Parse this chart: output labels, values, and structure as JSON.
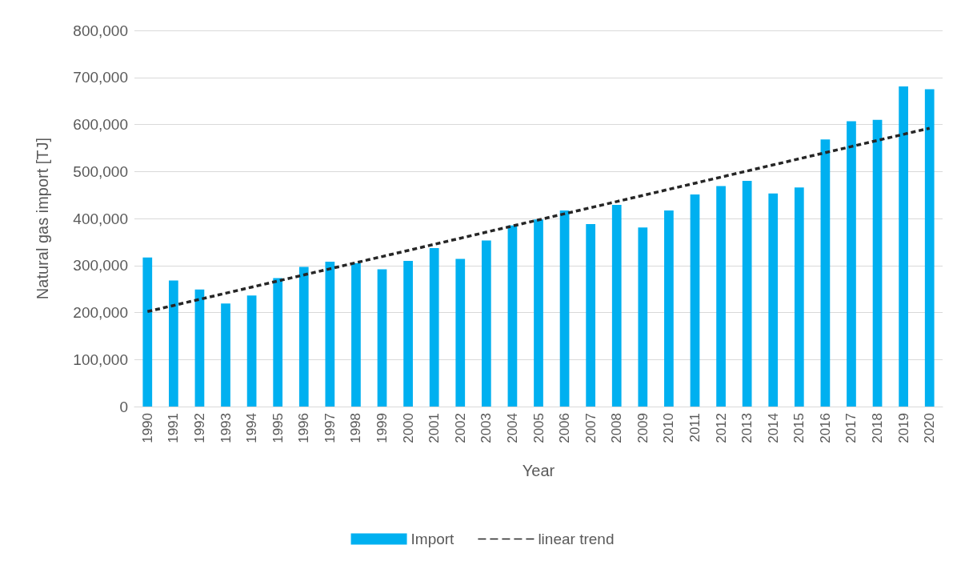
{
  "chart_data": {
    "type": "bar",
    "xlabel": "Year",
    "ylabel": "Natural gas import [TJ]",
    "categories": [
      "1990",
      "1991",
      "1992",
      "1993",
      "1994",
      "1995",
      "1996",
      "1997",
      "1998",
      "1999",
      "2000",
      "2001",
      "2002",
      "2003",
      "2004",
      "2005",
      "2006",
      "2007",
      "2008",
      "2009",
      "2010",
      "2011",
      "2012",
      "2013",
      "2014",
      "2015",
      "2016",
      "2017",
      "2018",
      "2019",
      "2020"
    ],
    "series": [
      {
        "name": "Import",
        "type": "bar",
        "color": "#00b0f0",
        "values": [
          317000,
          268000,
          249000,
          219000,
          236000,
          273000,
          297000,
          308000,
          305000,
          292000,
          310000,
          337000,
          314000,
          353000,
          385000,
          398000,
          417000,
          388000,
          429000,
          381000,
          417000,
          451000,
          469000,
          480000,
          453000,
          466000,
          568000,
          607000,
          610000,
          681000,
          675000
        ]
      },
      {
        "name": "linear trend",
        "type": "line",
        "color": "#262626",
        "line_style": "dashed",
        "marker": "none",
        "values": [
          202000,
          215000,
          228000,
          241000,
          254000,
          267000,
          280000,
          293000,
          306000,
          319000,
          332000,
          345000,
          358000,
          371000,
          384000,
          397000,
          410000,
          423000,
          436000,
          449000,
          462000,
          475000,
          488000,
          501000,
          514000,
          527000,
          540000,
          553000,
          566000,
          579000,
          592000
        ]
      }
    ],
    "ylim": [
      0,
      800000
    ],
    "yticks": [
      0,
      {
        "value": 100000,
        "label": "100,000"
      },
      {
        "value": 200000,
        "label": "200,000"
      },
      {
        "value": 300000,
        "label": "300,000"
      },
      {
        "value": 400000,
        "label": "400,000"
      },
      {
        "value": 500000,
        "label": "500,000"
      },
      {
        "value": 600000,
        "label": "600,000"
      },
      {
        "value": 700000,
        "label": "700,000"
      },
      {
        "value": 800000,
        "label": "800,000"
      }
    ],
    "grid": "y",
    "legend": "bottom"
  }
}
